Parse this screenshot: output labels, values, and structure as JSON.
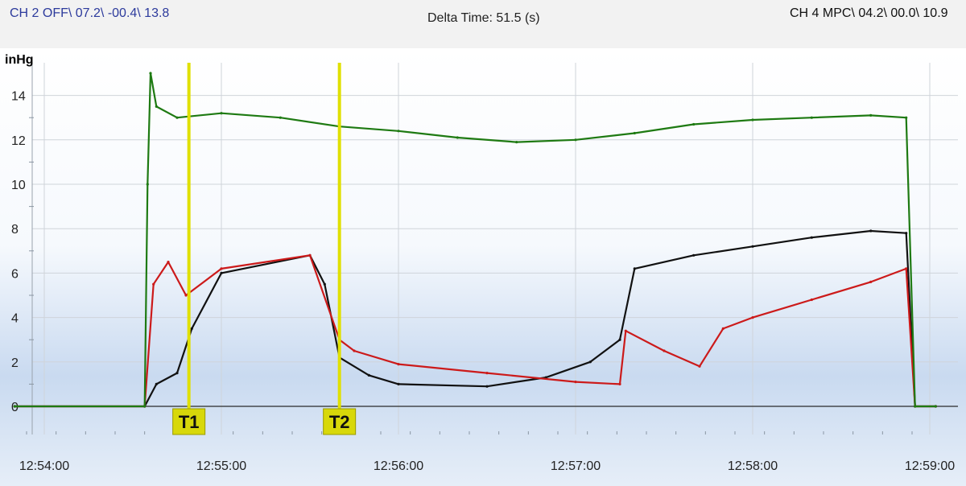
{
  "header": {
    "ch2_readout": "CH 2 OFF\\ 07.2\\ -00.4\\ 13.8",
    "delta_time": "Delta Time: 51.5 (s)",
    "ch4_readout": "CH 4 MPC\\ 04.2\\ 00.0\\ 10.9"
  },
  "colors": {
    "green_trace": "#1e7a12",
    "black_trace": "#111111",
    "red_trace": "#cc1a1a",
    "cursor": "#e0e000",
    "cursor_label_bg": "#d8d80a"
  },
  "chart_data": {
    "type": "line",
    "ylabel": "inHg",
    "ylim": [
      0,
      16
    ],
    "yticks": [
      "0",
      "2",
      "4",
      "6",
      "8",
      "10",
      "12",
      "14"
    ],
    "xlim": [
      "12:53:50",
      "12:59:02"
    ],
    "xticks": [
      "12:54:00",
      "12:55:00",
      "12:56:00",
      "12:57:00",
      "12:58:00",
      "12:59:00"
    ],
    "grid": true,
    "background": "white-to-light-blue gradient",
    "cursors": [
      {
        "label": "T1",
        "time": "12:54:49"
      },
      {
        "label": "T2",
        "time": "12:55:40"
      }
    ],
    "series": [
      {
        "color": "green",
        "points": [
          [
            "12:53:50",
            0
          ],
          [
            "12:54:34",
            0
          ],
          [
            "12:54:35",
            10
          ],
          [
            "12:54:36",
            15
          ],
          [
            "12:54:38",
            13.5
          ],
          [
            "12:54:45",
            13.0
          ],
          [
            "12:55:00",
            13.2
          ],
          [
            "12:55:20",
            13.0
          ],
          [
            "12:55:40",
            12.6
          ],
          [
            "12:56:00",
            12.4
          ],
          [
            "12:56:20",
            12.1
          ],
          [
            "12:56:40",
            11.9
          ],
          [
            "12:57:00",
            12.0
          ],
          [
            "12:57:20",
            12.3
          ],
          [
            "12:57:40",
            12.7
          ],
          [
            "12:58:00",
            12.9
          ],
          [
            "12:58:20",
            13.0
          ],
          [
            "12:58:40",
            13.1
          ],
          [
            "12:58:52",
            13.0
          ],
          [
            "12:58:55",
            0
          ],
          [
            "12:59:02",
            0
          ]
        ]
      },
      {
        "color": "black",
        "points": [
          [
            "12:53:50",
            0
          ],
          [
            "12:54:34",
            0
          ],
          [
            "12:54:38",
            1.0
          ],
          [
            "12:54:45",
            1.5
          ],
          [
            "12:54:50",
            3.5
          ],
          [
            "12:55:00",
            6.0
          ],
          [
            "12:55:30",
            6.8
          ],
          [
            "12:55:35",
            5.5
          ],
          [
            "12:55:40",
            2.2
          ],
          [
            "12:55:50",
            1.4
          ],
          [
            "12:56:00",
            1.0
          ],
          [
            "12:56:30",
            0.9
          ],
          [
            "12:56:50",
            1.3
          ],
          [
            "12:57:05",
            2.0
          ],
          [
            "12:57:15",
            3.0
          ],
          [
            "12:57:20",
            6.2
          ],
          [
            "12:57:40",
            6.8
          ],
          [
            "12:58:00",
            7.2
          ],
          [
            "12:58:20",
            7.6
          ],
          [
            "12:58:40",
            7.9
          ],
          [
            "12:58:52",
            7.8
          ],
          [
            "12:58:55",
            0
          ],
          [
            "12:59:02",
            0
          ]
        ]
      },
      {
        "color": "red",
        "points": [
          [
            "12:53:50",
            0
          ],
          [
            "12:54:34",
            0
          ],
          [
            "12:54:37",
            5.5
          ],
          [
            "12:54:42",
            6.5
          ],
          [
            "12:54:48",
            5.0
          ],
          [
            "12:55:00",
            6.2
          ],
          [
            "12:55:30",
            6.8
          ],
          [
            "12:55:40",
            3.0
          ],
          [
            "12:55:45",
            2.5
          ],
          [
            "12:56:00",
            1.9
          ],
          [
            "12:56:30",
            1.5
          ],
          [
            "12:57:00",
            1.1
          ],
          [
            "12:57:15",
            1.0
          ],
          [
            "12:57:17",
            3.4
          ],
          [
            "12:57:30",
            2.5
          ],
          [
            "12:57:42",
            1.8
          ],
          [
            "12:57:50",
            3.5
          ],
          [
            "12:58:00",
            4.0
          ],
          [
            "12:58:20",
            4.8
          ],
          [
            "12:58:40",
            5.6
          ],
          [
            "12:58:52",
            6.2
          ],
          [
            "12:58:55",
            0
          ],
          [
            "12:59:02",
            0
          ]
        ]
      }
    ]
  }
}
